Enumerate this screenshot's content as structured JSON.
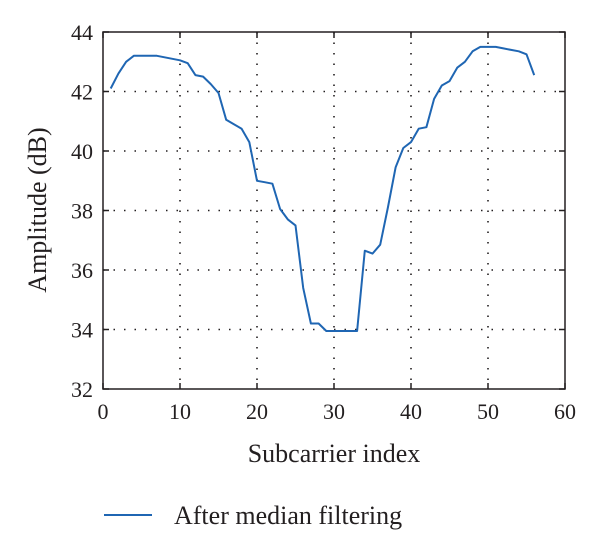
{
  "chart_data": {
    "type": "line",
    "xlabel": "Subcarrier index",
    "ylabel": "Amplitude (dB)",
    "xlim": [
      0,
      60
    ],
    "ylim": [
      32,
      44
    ],
    "xticks": [
      0,
      10,
      20,
      30,
      40,
      50,
      60
    ],
    "yticks": [
      32,
      34,
      36,
      38,
      40,
      42,
      44
    ],
    "grid": true,
    "legend_position": "bottom",
    "series": [
      {
        "name": "After median filtering",
        "color": "#1f66b3",
        "x": [
          1,
          2,
          3,
          4,
          5,
          6,
          7,
          8,
          9,
          10,
          11,
          12,
          13,
          14,
          15,
          16,
          17,
          18,
          19,
          20,
          21,
          22,
          23,
          24,
          25,
          26,
          27,
          28,
          29,
          30,
          31,
          32,
          33,
          34,
          35,
          36,
          37,
          38,
          39,
          40,
          41,
          42,
          43,
          44,
          45,
          46,
          47,
          48,
          49,
          50,
          51,
          52,
          53,
          54,
          55,
          56
        ],
        "y": [
          42.1,
          42.6,
          43.0,
          43.2,
          43.2,
          43.2,
          43.2,
          43.15,
          43.1,
          43.05,
          42.95,
          42.55,
          42.5,
          42.25,
          41.95,
          41.05,
          40.9,
          40.75,
          40.3,
          39.0,
          38.95,
          38.9,
          38.05,
          37.7,
          37.5,
          35.4,
          34.2,
          34.2,
          33.95,
          33.95,
          33.95,
          33.95,
          33.95,
          36.65,
          36.55,
          36.85,
          38.1,
          39.45,
          40.1,
          40.3,
          40.75,
          40.8,
          41.75,
          42.2,
          42.35,
          42.8,
          43.0,
          43.35,
          43.5,
          43.5,
          43.5,
          43.45,
          43.4,
          43.35,
          43.25,
          42.55
        ]
      }
    ]
  }
}
